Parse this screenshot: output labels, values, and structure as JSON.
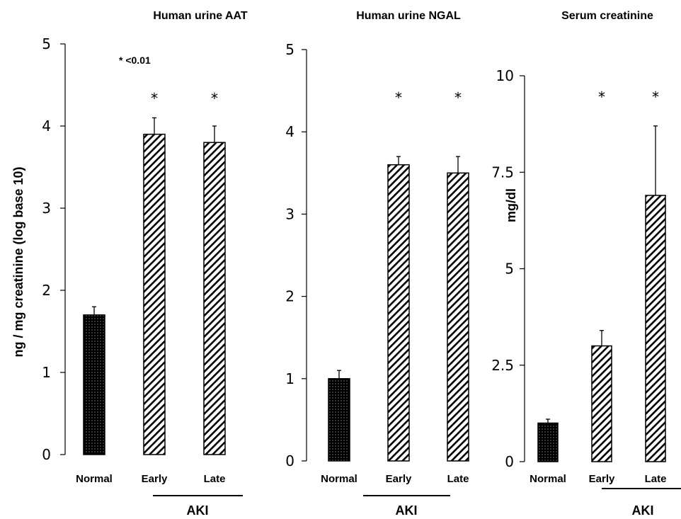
{
  "chart_data": [
    {
      "type": "bar",
      "title": "Human urine AAT",
      "ylabel": "ng / mg creatinine  (log base 10)",
      "annotation": "* <0.01",
      "categories": [
        "Normal",
        "Early",
        "Late"
      ],
      "values": [
        1.7,
        3.9,
        3.8
      ],
      "errors": [
        0.1,
        0.2,
        0.2
      ],
      "significance": [
        "",
        "*",
        "*"
      ],
      "patterns": [
        "dots",
        "hatch",
        "hatch"
      ],
      "ylim": [
        0,
        5
      ],
      "yticks": [
        0,
        1,
        2,
        3,
        4,
        5
      ],
      "ytick_labels": [
        "0",
        "1",
        "2",
        "3",
        "4",
        "5"
      ],
      "group_label": "AKI",
      "group_categories": [
        "Early",
        "Late"
      ]
    },
    {
      "type": "bar",
      "title": "Human urine NGAL",
      "ylabel": "",
      "categories": [
        "Normal",
        "Early",
        "Late"
      ],
      "values": [
        1.0,
        3.6,
        3.5
      ],
      "errors": [
        0.1,
        0.1,
        0.2
      ],
      "significance": [
        "",
        "*",
        "*"
      ],
      "patterns": [
        "dots",
        "hatch",
        "hatch"
      ],
      "ylim": [
        0,
        5
      ],
      "yticks": [
        0,
        1,
        2,
        3,
        4,
        5
      ],
      "ytick_labels": [
        "0",
        "1",
        "2",
        "3",
        "4",
        "5"
      ],
      "group_label": "AKI",
      "group_categories": [
        "Early",
        "Late"
      ]
    },
    {
      "type": "bar",
      "title": "Serum creatinine",
      "ylabel": "mg/dl",
      "categories": [
        "Normal",
        "Early",
        "Late"
      ],
      "values": [
        1.0,
        3.0,
        6.9
      ],
      "errors": [
        0.1,
        0.4,
        1.8
      ],
      "significance": [
        "",
        "*",
        "*"
      ],
      "patterns": [
        "dots",
        "hatch",
        "hatch"
      ],
      "ylim": [
        0,
        10
      ],
      "yticks": [
        0,
        2.5,
        5,
        7.5,
        10
      ],
      "ytick_labels": [
        "0",
        "2.5",
        "5",
        "7.5",
        "10"
      ],
      "group_label": "AKI",
      "group_categories": [
        "Early",
        "Late"
      ]
    }
  ],
  "colors": {
    "bar_fill": "#ffffff",
    "bar_stroke": "#000000",
    "dot_fill": "#000000",
    "axis": "#000000"
  }
}
